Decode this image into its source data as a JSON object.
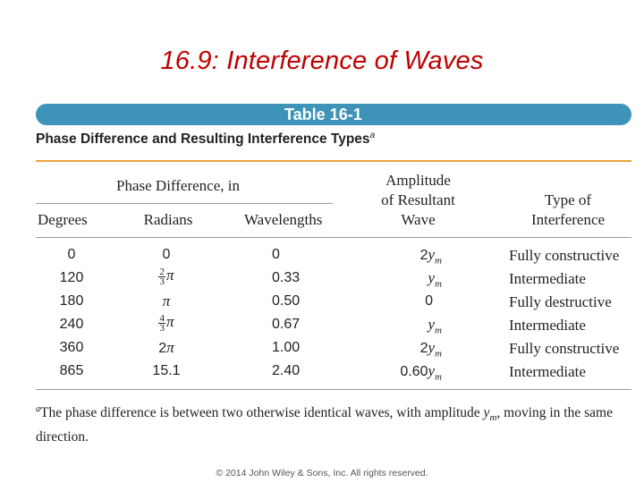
{
  "slide": {
    "title": "16.9: Interference of Waves",
    "copyright": "© 2014 John Wiley & Sons, Inc. All rights reserved."
  },
  "table": {
    "banner": "Table 16-1",
    "caption": "Phase Difference and Resulting Interference Types",
    "caption_mark": "a",
    "group_header": "Phase Difference, in",
    "headers": {
      "degrees": "Degrees",
      "radians": "Radians",
      "wavelengths": "Wavelengths",
      "amplitude_1": "Amplitude",
      "amplitude_2": "of Resultant",
      "amplitude_3": "Wave",
      "type_1": "Type of",
      "type_2": "Interference"
    },
    "rows": [
      {
        "degrees": "0",
        "radians": "0",
        "wavelengths": "0",
        "amp_coef": "2",
        "amp_var": "y",
        "amp_sub": "m",
        "type": "Fully constructive"
      },
      {
        "degrees": "120",
        "rad_num": "2",
        "rad_den": "3",
        "rad_pi": "π",
        "wavelengths": "0.33",
        "amp_coef": "",
        "amp_var": "y",
        "amp_sub": "m",
        "type": "Intermediate"
      },
      {
        "degrees": "180",
        "rad_pi": "π",
        "wavelengths": "0.50",
        "amp_plain": "0",
        "type": "Fully destructive"
      },
      {
        "degrees": "240",
        "rad_num": "4",
        "rad_den": "3",
        "rad_pi": "π",
        "wavelengths": "0.67",
        "amp_coef": "",
        "amp_var": "y",
        "amp_sub": "m",
        "type": "Intermediate"
      },
      {
        "degrees": "360",
        "rad_coef": "2",
        "rad_pi": "π",
        "wavelengths": "1.00",
        "amp_coef": "2",
        "amp_var": "y",
        "amp_sub": "m",
        "type": "Fully constructive"
      },
      {
        "degrees": "865",
        "radians": "15.1",
        "wavelengths": "2.40",
        "amp_coef": "0.60",
        "amp_var": "y",
        "amp_sub": "m",
        "type": "Intermediate"
      }
    ],
    "footnote_mark": "a",
    "footnote_text_1": "The phase difference is between two otherwise identical waves, with amplitude ",
    "footnote_var": "y",
    "footnote_sub": "m",
    "footnote_text_2": ", moving in the same direction."
  }
}
